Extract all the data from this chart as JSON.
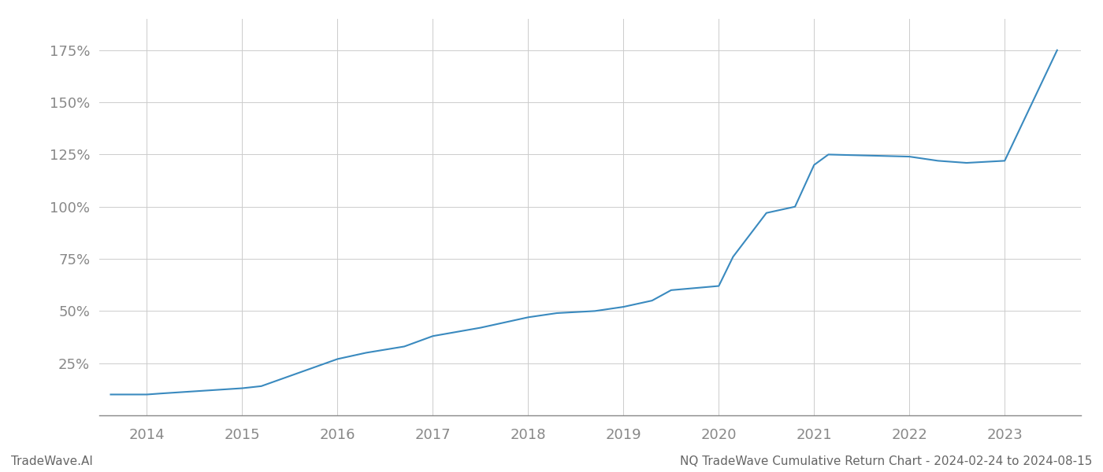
{
  "x_values": [
    2013.62,
    2014.0,
    2014.15,
    2015.0,
    2015.2,
    2016.0,
    2016.3,
    2016.7,
    2017.0,
    2017.5,
    2018.0,
    2018.3,
    2018.7,
    2019.0,
    2019.3,
    2019.5,
    2020.0,
    2020.15,
    2020.5,
    2020.8,
    2021.0,
    2021.15,
    2022.0,
    2022.3,
    2022.6,
    2023.0,
    2023.55
  ],
  "y_values": [
    10,
    10,
    10.5,
    13,
    14,
    27,
    30,
    33,
    38,
    42,
    47,
    49,
    50,
    52,
    55,
    60,
    62,
    76,
    97,
    100,
    120,
    125,
    124,
    122,
    121,
    122,
    175
  ],
  "line_color": "#3a8abf",
  "line_width": 1.5,
  "x_ticks": [
    2014,
    2015,
    2016,
    2017,
    2018,
    2019,
    2020,
    2021,
    2022,
    2023
  ],
  "y_ticks": [
    25,
    50,
    75,
    100,
    125,
    150,
    175
  ],
  "y_tick_labels": [
    "25%",
    "50%",
    "75%",
    "100%",
    "125%",
    "150%",
    "175%"
  ],
  "xlim": [
    2013.5,
    2023.8
  ],
  "ylim": [
    0,
    190
  ],
  "grid_color": "#cccccc",
  "background_color": "#ffffff",
  "footer_left": "TradeWave.AI",
  "footer_right": "NQ TradeWave Cumulative Return Chart - 2024-02-24 to 2024-08-15",
  "footer_color": "#666666",
  "footer_fontsize": 11,
  "tick_color": "#888888",
  "tick_fontsize": 13,
  "spine_color": "#888888"
}
